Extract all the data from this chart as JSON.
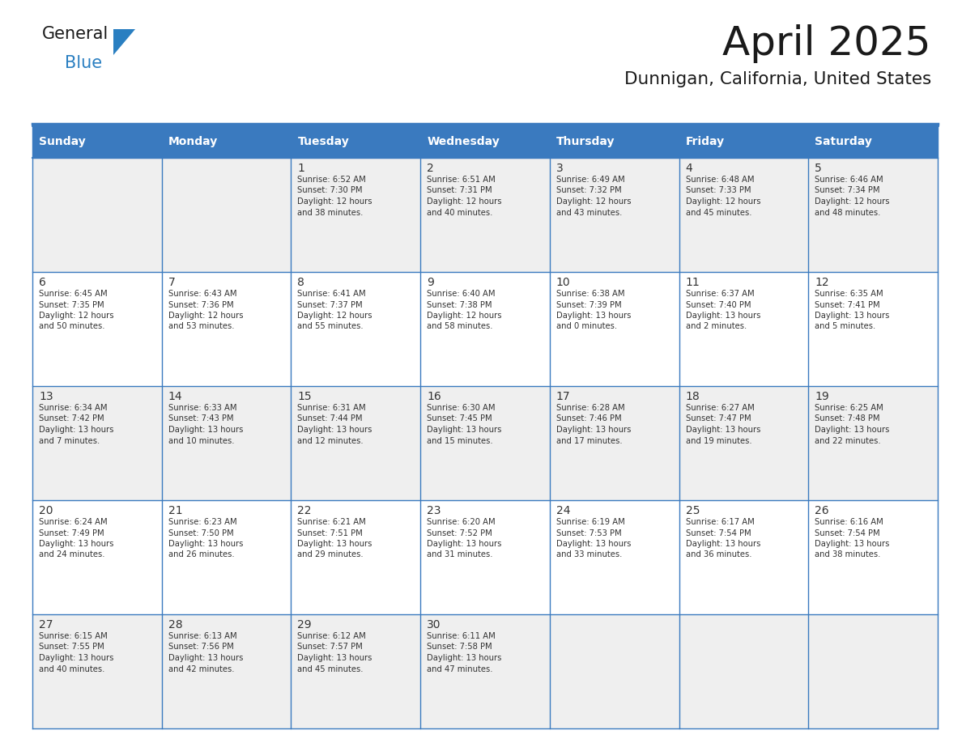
{
  "title": "April 2025",
  "subtitle": "Dunnigan, California, United States",
  "header_bg": "#3a7abf",
  "header_text_color": "#ffffff",
  "cell_bg_odd": "#efefef",
  "cell_bg_even": "#ffffff",
  "cell_text_color": "#333333",
  "border_color": "#3a7abf",
  "logo_general_color": "#1a1a1a",
  "logo_blue_color": "#2a7fc1",
  "logo_triangle_color": "#2a7fc1",
  "title_color": "#1a1a1a",
  "days_of_week": [
    "Sunday",
    "Monday",
    "Tuesday",
    "Wednesday",
    "Thursday",
    "Friday",
    "Saturday"
  ],
  "weeks": [
    [
      {
        "day": null,
        "info": null
      },
      {
        "day": null,
        "info": null
      },
      {
        "day": "1",
        "info": "Sunrise: 6:52 AM\nSunset: 7:30 PM\nDaylight: 12 hours\nand 38 minutes."
      },
      {
        "day": "2",
        "info": "Sunrise: 6:51 AM\nSunset: 7:31 PM\nDaylight: 12 hours\nand 40 minutes."
      },
      {
        "day": "3",
        "info": "Sunrise: 6:49 AM\nSunset: 7:32 PM\nDaylight: 12 hours\nand 43 minutes."
      },
      {
        "day": "4",
        "info": "Sunrise: 6:48 AM\nSunset: 7:33 PM\nDaylight: 12 hours\nand 45 minutes."
      },
      {
        "day": "5",
        "info": "Sunrise: 6:46 AM\nSunset: 7:34 PM\nDaylight: 12 hours\nand 48 minutes."
      }
    ],
    [
      {
        "day": "6",
        "info": "Sunrise: 6:45 AM\nSunset: 7:35 PM\nDaylight: 12 hours\nand 50 minutes."
      },
      {
        "day": "7",
        "info": "Sunrise: 6:43 AM\nSunset: 7:36 PM\nDaylight: 12 hours\nand 53 minutes."
      },
      {
        "day": "8",
        "info": "Sunrise: 6:41 AM\nSunset: 7:37 PM\nDaylight: 12 hours\nand 55 minutes."
      },
      {
        "day": "9",
        "info": "Sunrise: 6:40 AM\nSunset: 7:38 PM\nDaylight: 12 hours\nand 58 minutes."
      },
      {
        "day": "10",
        "info": "Sunrise: 6:38 AM\nSunset: 7:39 PM\nDaylight: 13 hours\nand 0 minutes."
      },
      {
        "day": "11",
        "info": "Sunrise: 6:37 AM\nSunset: 7:40 PM\nDaylight: 13 hours\nand 2 minutes."
      },
      {
        "day": "12",
        "info": "Sunrise: 6:35 AM\nSunset: 7:41 PM\nDaylight: 13 hours\nand 5 minutes."
      }
    ],
    [
      {
        "day": "13",
        "info": "Sunrise: 6:34 AM\nSunset: 7:42 PM\nDaylight: 13 hours\nand 7 minutes."
      },
      {
        "day": "14",
        "info": "Sunrise: 6:33 AM\nSunset: 7:43 PM\nDaylight: 13 hours\nand 10 minutes."
      },
      {
        "day": "15",
        "info": "Sunrise: 6:31 AM\nSunset: 7:44 PM\nDaylight: 13 hours\nand 12 minutes."
      },
      {
        "day": "16",
        "info": "Sunrise: 6:30 AM\nSunset: 7:45 PM\nDaylight: 13 hours\nand 15 minutes."
      },
      {
        "day": "17",
        "info": "Sunrise: 6:28 AM\nSunset: 7:46 PM\nDaylight: 13 hours\nand 17 minutes."
      },
      {
        "day": "18",
        "info": "Sunrise: 6:27 AM\nSunset: 7:47 PM\nDaylight: 13 hours\nand 19 minutes."
      },
      {
        "day": "19",
        "info": "Sunrise: 6:25 AM\nSunset: 7:48 PM\nDaylight: 13 hours\nand 22 minutes."
      }
    ],
    [
      {
        "day": "20",
        "info": "Sunrise: 6:24 AM\nSunset: 7:49 PM\nDaylight: 13 hours\nand 24 minutes."
      },
      {
        "day": "21",
        "info": "Sunrise: 6:23 AM\nSunset: 7:50 PM\nDaylight: 13 hours\nand 26 minutes."
      },
      {
        "day": "22",
        "info": "Sunrise: 6:21 AM\nSunset: 7:51 PM\nDaylight: 13 hours\nand 29 minutes."
      },
      {
        "day": "23",
        "info": "Sunrise: 6:20 AM\nSunset: 7:52 PM\nDaylight: 13 hours\nand 31 minutes."
      },
      {
        "day": "24",
        "info": "Sunrise: 6:19 AM\nSunset: 7:53 PM\nDaylight: 13 hours\nand 33 minutes."
      },
      {
        "day": "25",
        "info": "Sunrise: 6:17 AM\nSunset: 7:54 PM\nDaylight: 13 hours\nand 36 minutes."
      },
      {
        "day": "26",
        "info": "Sunrise: 6:16 AM\nSunset: 7:54 PM\nDaylight: 13 hours\nand 38 minutes."
      }
    ],
    [
      {
        "day": "27",
        "info": "Sunrise: 6:15 AM\nSunset: 7:55 PM\nDaylight: 13 hours\nand 40 minutes."
      },
      {
        "day": "28",
        "info": "Sunrise: 6:13 AM\nSunset: 7:56 PM\nDaylight: 13 hours\nand 42 minutes."
      },
      {
        "day": "29",
        "info": "Sunrise: 6:12 AM\nSunset: 7:57 PM\nDaylight: 13 hours\nand 45 minutes."
      },
      {
        "day": "30",
        "info": "Sunrise: 6:11 AM\nSunset: 7:58 PM\nDaylight: 13 hours\nand 47 minutes."
      },
      {
        "day": null,
        "info": null
      },
      {
        "day": null,
        "info": null
      },
      {
        "day": null,
        "info": null
      }
    ]
  ]
}
